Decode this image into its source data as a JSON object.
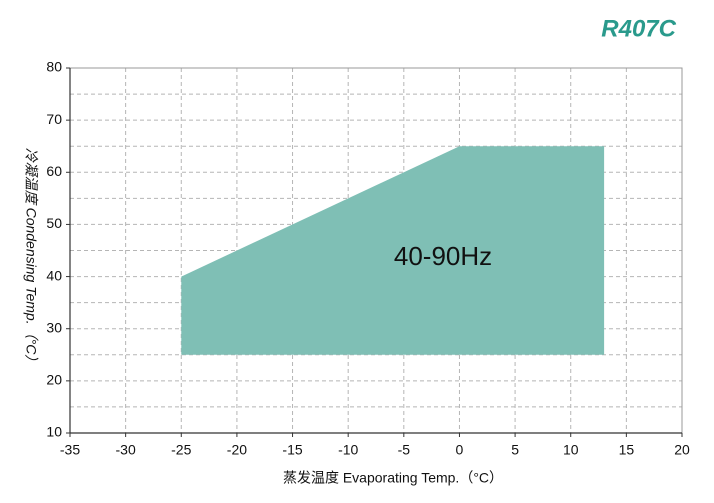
{
  "chart_data": {
    "type": "area",
    "title": "R407C",
    "annotation": "40-90Hz",
    "x_label": "蒸发温度  Evaporating Temp.（°C）",
    "y_label": "冷凝温度 Condensing Temp.（°C）",
    "x": [
      -25,
      0,
      13,
      13,
      -25
    ],
    "values": [
      40,
      65,
      65,
      25,
      25
    ],
    "color": "#7fbfb5",
    "title_color": "#2a9a8c",
    "xlim": [
      -35,
      20
    ],
    "xticks": [
      -35,
      -30,
      -25,
      -20,
      -15,
      -10,
      -5,
      0,
      5,
      10,
      15,
      20
    ],
    "ylim": [
      10,
      80
    ],
    "yticks": [
      10,
      20,
      30,
      40,
      50,
      60,
      70,
      80
    ],
    "grid": true
  }
}
